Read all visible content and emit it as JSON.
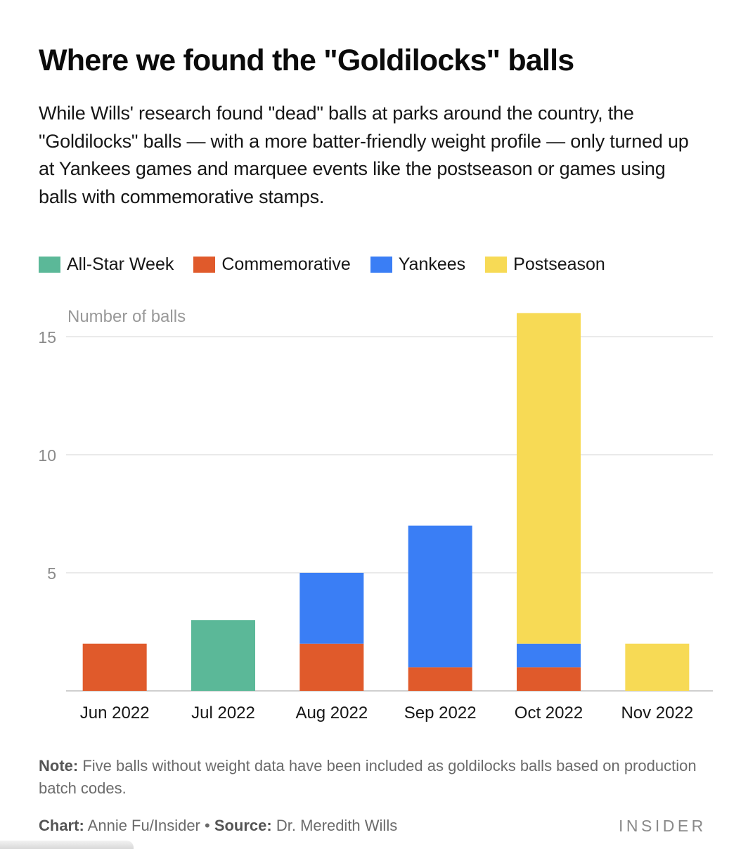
{
  "header": {
    "title": "Where we found the \"Goldilocks\" balls",
    "subtitle": "While Wills' research found \"dead\" balls at parks around the country, the \"Goldilocks\" balls — with a more batter-friendly weight profile — only turned up at Yankees games and marquee events like the postseason or games using balls with commemorative stamps."
  },
  "chart_data": {
    "type": "bar",
    "stacked": true,
    "title": "Where we found the \"Goldilocks\" balls",
    "xlabel": "",
    "ylabel": "Number of balls",
    "ylim": [
      0,
      15
    ],
    "yticks": [
      "5",
      "10",
      "15"
    ],
    "ytick_values": [
      5,
      10,
      15
    ],
    "grid": true,
    "legend_position": "top-left",
    "categories": [
      "Jun 2022",
      "Jul 2022",
      "Aug 2022",
      "Sep 2022",
      "Oct 2022",
      "Nov 2022"
    ],
    "series": [
      {
        "name": "Commemorative",
        "color": "#e05a2b",
        "values": [
          2,
          0,
          2,
          1,
          1,
          0
        ]
      },
      {
        "name": "All-Star Week",
        "color": "#5bb898",
        "values": [
          0,
          3,
          0,
          0,
          0,
          0
        ]
      },
      {
        "name": "Yankees",
        "color": "#3a7ef5",
        "values": [
          0,
          0,
          3,
          6,
          1,
          0
        ]
      },
      {
        "name": "Postseason",
        "color": "#f7da55",
        "values": [
          0,
          0,
          0,
          0,
          14,
          2
        ]
      }
    ]
  },
  "legend": [
    {
      "label": "All-Star Week",
      "color": "#5bb898"
    },
    {
      "label": "Commemorative",
      "color": "#e05a2b"
    },
    {
      "label": "Yankees",
      "color": "#3a7ef5"
    },
    {
      "label": "Postseason",
      "color": "#f7da55"
    }
  ],
  "footer": {
    "note_label": "Note:",
    "note_text": " Five balls without weight data have been included as goldilocks balls based on production batch codes.",
    "chart_label": "Chart:",
    "chart_text": " Annie Fu/Insider • ",
    "source_label": "Source:",
    "source_text": " Dr. Meredith Wills",
    "logo": "INSIDER"
  }
}
